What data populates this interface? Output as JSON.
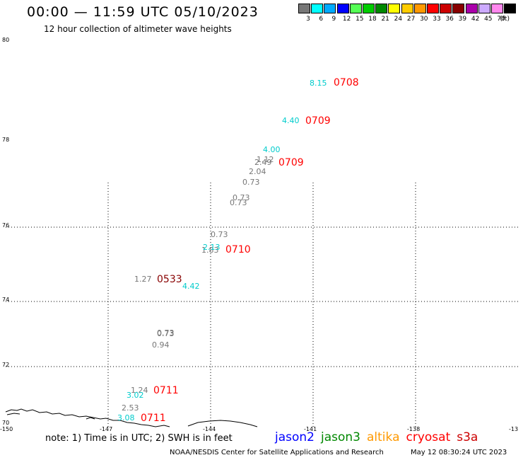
{
  "title": "00:00 — 11:59 UTC 05/10/2023",
  "subtitle": "12 hour collection of altimeter wave heights",
  "legend": {
    "unit": "(ft)",
    "bins": [
      {
        "label": "3",
        "color": "#777777"
      },
      {
        "label": "6",
        "color": "#00ffff"
      },
      {
        "label": "9",
        "color": "#00aaff"
      },
      {
        "label": "12",
        "color": "#0000ff"
      },
      {
        "label": "15",
        "color": "#55ff55"
      },
      {
        "label": "18",
        "color": "#00cc00"
      },
      {
        "label": "21",
        "color": "#008800"
      },
      {
        "label": "24",
        "color": "#ffff00"
      },
      {
        "label": "27",
        "color": "#ffcc00"
      },
      {
        "label": "30",
        "color": "#ff9900"
      },
      {
        "label": "33",
        "color": "#ff0000"
      },
      {
        "label": "36",
        "color": "#cc0000"
      },
      {
        "label": "39",
        "color": "#880000"
      },
      {
        "label": "42",
        "color": "#aa00aa"
      },
      {
        "label": "45",
        "color": "#ccaaff"
      },
      {
        "label": "70",
        "color": "#ff88ee"
      },
      {
        "label": "",
        "color": "#000000"
      }
    ]
  },
  "map": {
    "lon_range": [
      -150,
      -135
    ],
    "lat_range": [
      70,
      80
    ],
    "lat_ticks": [
      "80",
      "78",
      "76",
      "74",
      "72",
      "70"
    ],
    "lon_ticks": [
      "-150",
      "-147",
      "-144",
      "-141",
      "-138",
      "-13"
    ],
    "wave_heights": [
      {
        "text": "8.15",
        "color": "#00cccc"
      },
      {
        "text": "4.40",
        "color": "#00cccc"
      },
      {
        "text": "4.00",
        "color": "#00cccc"
      },
      {
        "text": "1.12",
        "color": "#777777"
      },
      {
        "text": "2.49",
        "color": "#777777"
      },
      {
        "text": "2.04",
        "color": "#777777"
      },
      {
        "text": "0.73",
        "color": "#777777"
      },
      {
        "text": "0.73",
        "color": "#777777"
      },
      {
        "text": "0.73",
        "color": "#777777"
      },
      {
        "text": "0.73",
        "color": "#777777"
      },
      {
        "text": "1.83",
        "color": "#777777"
      },
      {
        "text": "2.13",
        "color": "#00cccc"
      },
      {
        "text": "1.27",
        "color": "#777777"
      },
      {
        "text": "4.42",
        "color": "#00cccc"
      },
      {
        "text": "0.73",
        "color": "#777777"
      },
      {
        "text": "0.73",
        "color": "#777777"
      },
      {
        "text": "0.94",
        "color": "#777777"
      },
      {
        "text": "1.24",
        "color": "#777777"
      },
      {
        "text": "3.02",
        "color": "#00cccc"
      },
      {
        "text": "2.53",
        "color": "#777777"
      },
      {
        "text": "3.08",
        "color": "#00cccc"
      }
    ],
    "pass_times": [
      {
        "text": "0708",
        "color": "#ff0000"
      },
      {
        "text": "0709",
        "color": "#ff0000"
      },
      {
        "text": "0709",
        "color": "#ff0000"
      },
      {
        "text": "0710",
        "color": "#ff0000"
      },
      {
        "text": "0533",
        "color": "#880000"
      },
      {
        "text": "0711",
        "color": "#ff0000"
      },
      {
        "text": "0711",
        "color": "#ff0000"
      }
    ]
  },
  "note": "note:  1) Time is in UTC;  2) SWH is in feet",
  "satellites": [
    {
      "name": "jason2",
      "color": "#0000ff"
    },
    {
      "name": "jason3",
      "color": "#008800"
    },
    {
      "name": "altika",
      "color": "#ff9900"
    },
    {
      "name": "cryosat",
      "color": "#ff0000"
    },
    {
      "name": "s3a",
      "color": "#cc0000"
    }
  ],
  "credit": "NOAA/NESDIS Center for Satellite Applications and Research",
  "credit_time": "May 12 08:30:24 UTC 2023"
}
